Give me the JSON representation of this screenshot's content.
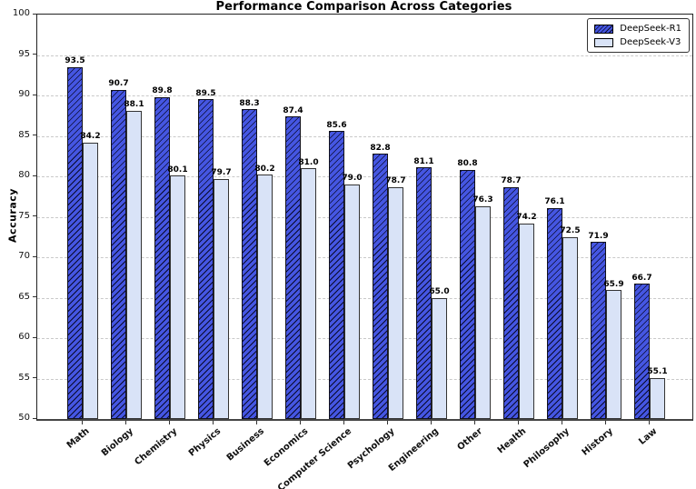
{
  "chart_data": {
    "type": "bar",
    "title": "Performance Comparison Across Categories",
    "xlabel": "",
    "ylabel": "Accuracy",
    "ylim": [
      50,
      100
    ],
    "ytick_step": 5,
    "grid": true,
    "grid_style": "dashed",
    "legend_position": "upper right",
    "categories": [
      "Math",
      "Biology",
      "Chemistry",
      "Physics",
      "Business",
      "Economics",
      "Computer Science",
      "Psychology",
      "Engineering",
      "Other",
      "Health",
      "Philosophy",
      "History",
      "Law"
    ],
    "series": [
      {
        "name": "DeepSeek-R1",
        "color": "#4556e2",
        "hatch": "//",
        "values": [
          93.5,
          90.7,
          89.8,
          89.5,
          88.3,
          87.4,
          85.6,
          82.8,
          81.1,
          80.8,
          78.7,
          76.1,
          71.9,
          66.7
        ]
      },
      {
        "name": "DeepSeek-V3",
        "color": "#d9e3f7",
        "hatch": "",
        "values": [
          84.2,
          88.1,
          80.1,
          79.7,
          80.2,
          81.0,
          79.0,
          78.7,
          65.0,
          76.3,
          74.2,
          72.5,
          65.9,
          55.1
        ]
      }
    ],
    "value_label_format": "1-decimal",
    "colors": {
      "r1_bar": "#4556e2",
      "v3_bar": "#d9e3f7",
      "bar_edge": "#10101c",
      "gridline": "#c9c9c9",
      "spine": "#222222",
      "text": "#000000",
      "background": "#ffffff"
    }
  }
}
